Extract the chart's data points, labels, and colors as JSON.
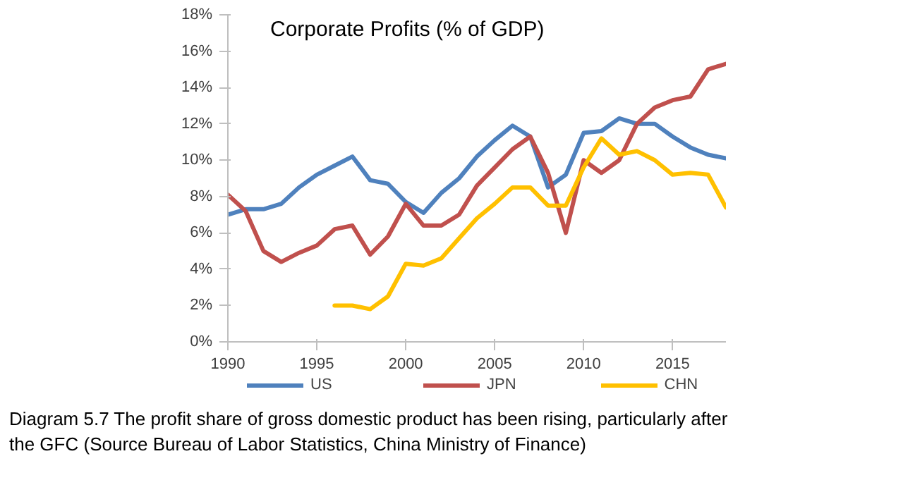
{
  "chart_data": {
    "type": "line",
    "title": "Corporate Profits (% of GDP)",
    "x": [
      1990,
      1991,
      1992,
      1993,
      1994,
      1995,
      1996,
      1997,
      1998,
      1999,
      2000,
      2001,
      2002,
      2003,
      2004,
      2005,
      2006,
      2007,
      2008,
      2009,
      2010,
      2011,
      2012,
      2013,
      2014,
      2015,
      2016,
      2017,
      2018
    ],
    "series": [
      {
        "name": "US",
        "color": "#4f81bd",
        "values": [
          7.0,
          7.3,
          7.3,
          7.6,
          8.5,
          9.2,
          9.7,
          10.2,
          8.9,
          8.7,
          7.7,
          7.1,
          8.2,
          9.0,
          10.2,
          11.1,
          11.9,
          11.3,
          8.5,
          9.2,
          11.5,
          11.6,
          12.3,
          12.0,
          12.0,
          11.3,
          10.7,
          10.3,
          10.1
        ]
      },
      {
        "name": "JPN",
        "color": "#c0504d",
        "values": [
          8.1,
          7.2,
          5.0,
          4.4,
          4.9,
          5.3,
          6.2,
          6.4,
          4.8,
          5.8,
          7.6,
          6.4,
          6.4,
          7.0,
          8.6,
          9.6,
          10.6,
          11.3,
          9.3,
          6.0,
          10.0,
          9.3,
          10.0,
          12.0,
          12.9,
          13.3,
          13.5,
          15.0,
          15.3
        ]
      },
      {
        "name": "CHN",
        "color": "#ffc000",
        "values": [
          null,
          null,
          null,
          null,
          null,
          null,
          2.0,
          2.0,
          1.8,
          2.5,
          4.3,
          4.2,
          4.6,
          5.7,
          6.8,
          7.6,
          8.5,
          8.5,
          7.5,
          7.5,
          9.6,
          11.2,
          10.3,
          10.5,
          10.0,
          9.2,
          9.3,
          9.2,
          7.4
        ]
      }
    ],
    "xlim": [
      1990,
      2018
    ],
    "xticks": [
      1990,
      1995,
      2000,
      2005,
      2010,
      2015
    ],
    "ylim": [
      0,
      18
    ],
    "yticks": [
      {
        "value": 0,
        "label": "0%"
      },
      {
        "value": 2,
        "label": "2%"
      },
      {
        "value": 4,
        "label": "4%"
      },
      {
        "value": 6,
        "label": "6%"
      },
      {
        "value": 8,
        "label": "8%"
      },
      {
        "value": 10,
        "label": "10%"
      },
      {
        "value": 12,
        "label": "12%"
      },
      {
        "value": 14,
        "label": "14%"
      },
      {
        "value": 16,
        "label": "16%"
      },
      {
        "value": 18,
        "label": "18%"
      }
    ],
    "grid": false,
    "legend": "bottom",
    "line_style": "solid",
    "marker": "none",
    "annotations": [
      "Diagram 5.7 The profit share of gross domestic product has been rising, particularly after the GFC (Source Bureau of Labor Statistics, China Ministry of Finance)"
    ]
  }
}
